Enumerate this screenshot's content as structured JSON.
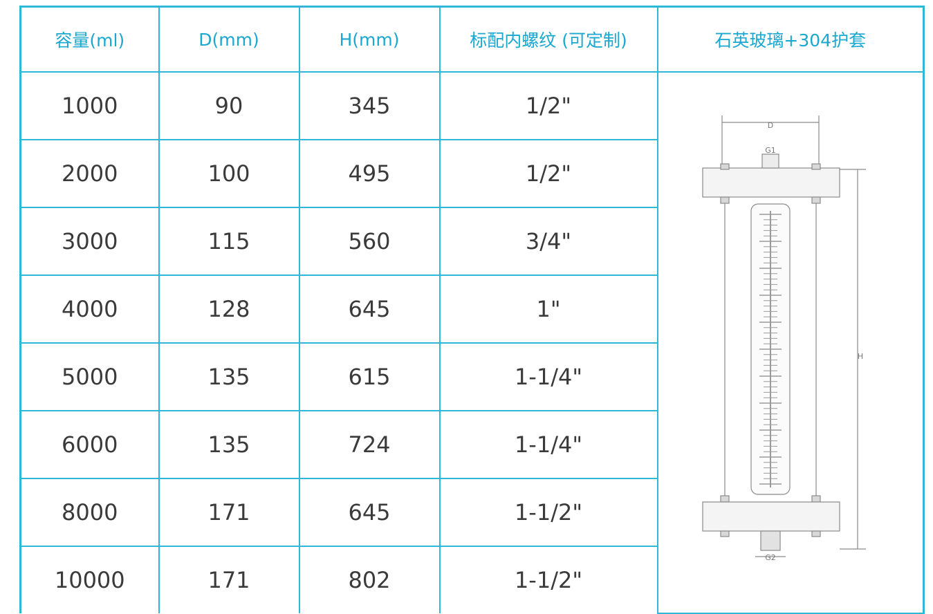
{
  "headers": {
    "capacity": "容量(ml)",
    "diameter": "D(mm)",
    "height": "H(mm)",
    "thread": "标配内螺纹 (可定制)",
    "material": "石英玻璃+304护套"
  },
  "rows": [
    {
      "capacity": "1000",
      "diameter": "90",
      "height": "345",
      "thread": "1/2\""
    },
    {
      "capacity": "2000",
      "diameter": "100",
      "height": "495",
      "thread": "1/2\""
    },
    {
      "capacity": "3000",
      "diameter": "115",
      "height": "560",
      "thread": "3/4\""
    },
    {
      "capacity": "4000",
      "diameter": "128",
      "height": "645",
      "thread": "1\""
    },
    {
      "capacity": "5000",
      "diameter": "135",
      "height": "615",
      "thread": "1-1/4\""
    },
    {
      "capacity": "6000",
      "diameter": "135",
      "height": "724",
      "thread": "1-1/4\""
    },
    {
      "capacity": "8000",
      "diameter": "171",
      "height": "645",
      "thread": "1-1/2\""
    },
    {
      "capacity": "10000",
      "diameter": "171",
      "height": "802",
      "thread": "1-1/2\""
    }
  ],
  "diagram": {
    "label_d": "D",
    "label_g1": "G1",
    "label_h": "H",
    "label_g2": "G2"
  },
  "colors": {
    "accent": "#2fb7d6",
    "header_text": "#1aa7d0",
    "body_text": "#3a3a3a"
  }
}
